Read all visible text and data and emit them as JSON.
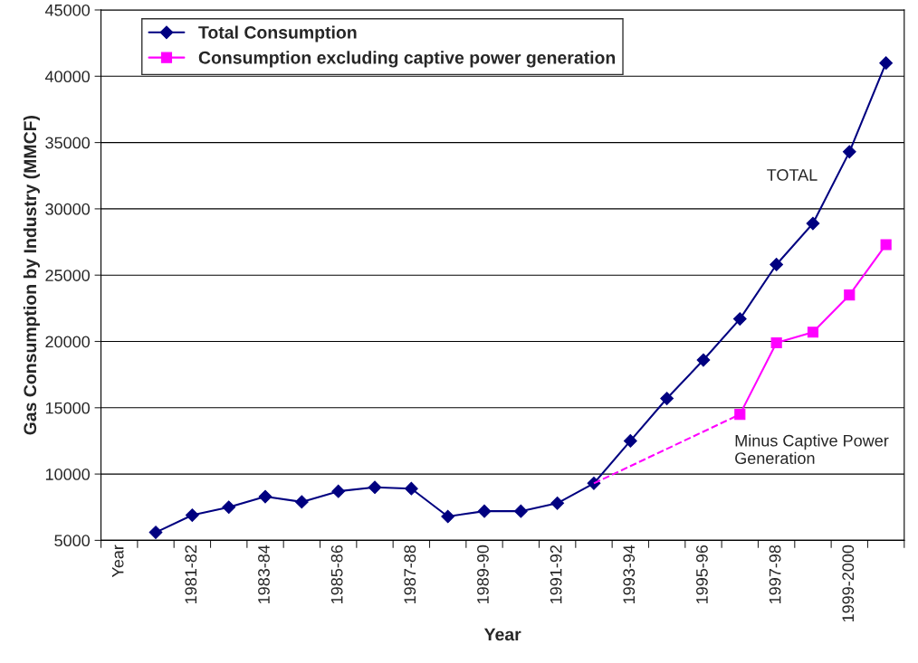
{
  "chart_data": {
    "type": "line",
    "xlabel": "Year",
    "ylabel": "Gas Consumption by Industry (MMCF)",
    "categories": [
      "Year",
      null,
      "1981-82",
      null,
      "1983-84",
      null,
      "1985-86",
      null,
      "1987-88",
      null,
      "1989-90",
      null,
      "1991-92",
      null,
      "1993-94",
      null,
      "1995-96",
      null,
      "1997-98",
      null,
      "1999-2000",
      null
    ],
    "series": [
      {
        "name": "Total Consumption",
        "color": "#000080",
        "marker": "diamond",
        "line_style": "solid",
        "values": [
          null,
          5600,
          6900,
          7500,
          8300,
          7900,
          8700,
          9000,
          8900,
          6800,
          7200,
          7200,
          7800,
          9300,
          12500,
          15700,
          18600,
          21700,
          25800,
          28900,
          34300,
          41000
        ]
      },
      {
        "name": "Consumption excluding captive power generation",
        "color": "#ff00ff",
        "marker": "square",
        "line_style": "solid",
        "values": [
          null,
          null,
          null,
          null,
          null,
          null,
          null,
          null,
          null,
          null,
          null,
          null,
          null,
          null,
          null,
          null,
          null,
          14500,
          19900,
          20700,
          23500,
          27300
        ]
      },
      {
        "color": "#ff00ff",
        "marker": "none",
        "line_style": "dashed",
        "values": [
          null,
          null,
          null,
          null,
          null,
          null,
          null,
          null,
          null,
          null,
          null,
          null,
          null,
          9300,
          null,
          null,
          null,
          14500,
          null,
          null,
          null,
          null
        ]
      }
    ],
    "ylim": [
      5000,
      45000
    ],
    "yticks": [
      5000,
      10000,
      15000,
      20000,
      25000,
      30000,
      35000,
      40000,
      45000
    ],
    "grid": "y",
    "legend": "top left",
    "annotations": [
      "TOTAL",
      "Minus Captive Power\nGeneration"
    ]
  }
}
